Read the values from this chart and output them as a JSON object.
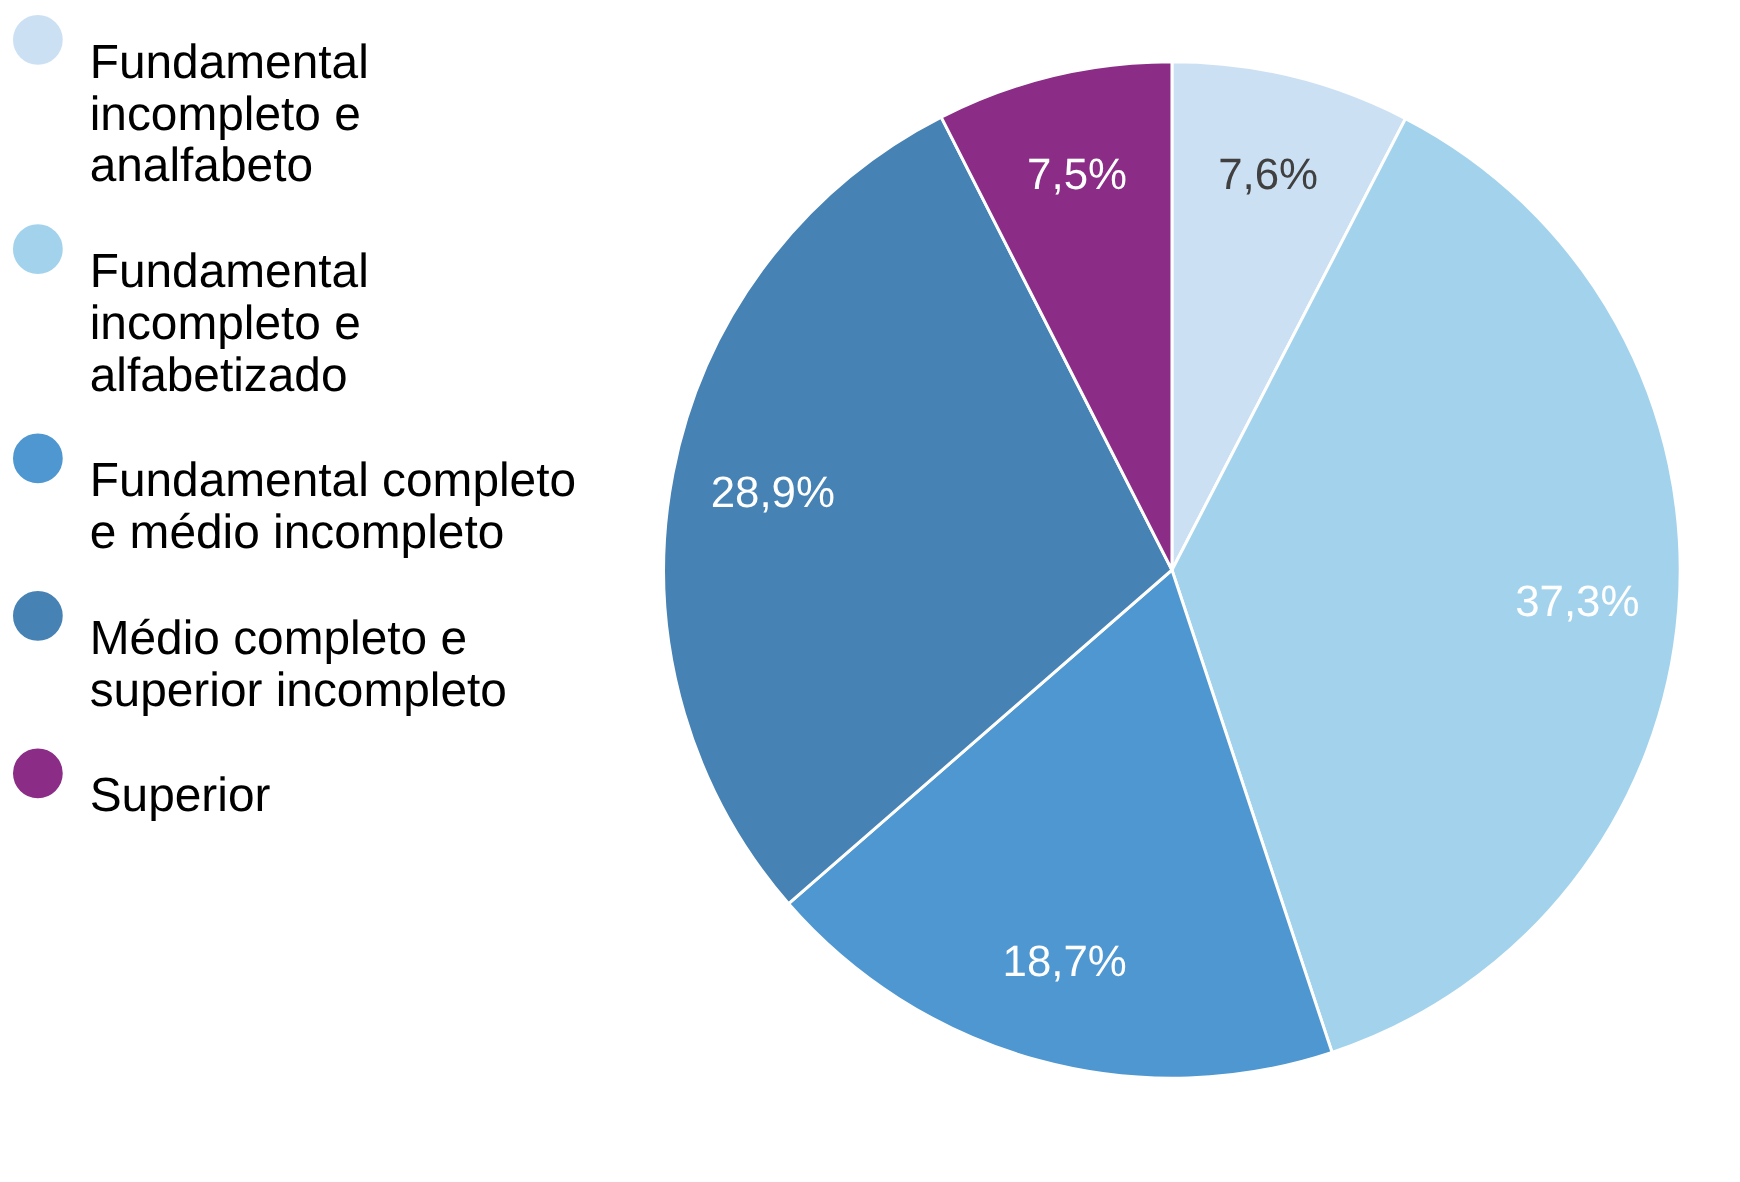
{
  "chart_data": {
    "type": "pie",
    "categories": [
      "Fundamental incompleto e analfabeto",
      "Fundamental incompleto e alfabetizado",
      "Fundamental completo e médio incompleto",
      "Médio completo e superior incompleto",
      "Superior"
    ],
    "values": [
      7.6,
      37.3,
      18.7,
      28.9,
      7.5
    ],
    "colors": [
      "#cce0f4",
      "#a3d3ec",
      "#4f97d1",
      "#4682b4",
      "#8b2c86"
    ],
    "value_labels": [
      "7,6%",
      "37,3%",
      "18,7%",
      "28,9%",
      "7,5%"
    ],
    "legend": "left"
  }
}
